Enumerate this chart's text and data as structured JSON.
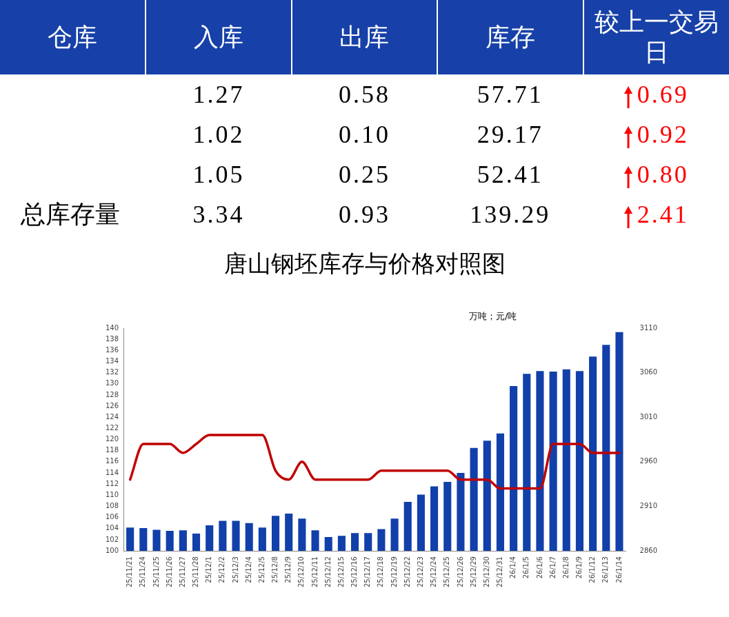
{
  "chart_data": [
    {
      "type": "other",
      "categories": [
        "仓库",
        "入库",
        "出库",
        "库存",
        "较上一交易日"
      ],
      "y_categories": [
        null,
        null,
        null,
        "总库存量"
      ],
      "cell_labels": [
        [
          "1.27",
          "0.58",
          "57.71",
          "0.69"
        ],
        [
          "1.02",
          "0.10",
          "29.17",
          "0.92"
        ],
        [
          "1.05",
          "0.25",
          "52.41",
          "0.80"
        ],
        [
          "3.34",
          "0.93",
          "139.29",
          "2.41"
        ]
      ]
    },
    {
      "type": "bar",
      "title": "唐山钢坯库存与价格对照图",
      "annotations": [
        "万吨；元/吨"
      ],
      "categories": [
        "25/11/21",
        "25/11/24",
        "25/11/25",
        "25/11/26",
        "25/11/27",
        "25/11/28",
        "25/12/1",
        "25/12/2",
        "25/12/3",
        "25/12/4",
        "25/12/5",
        "25/12/8",
        "25/12/9",
        "25/12/10",
        "25/12/11",
        "25/12/12",
        "25/12/15",
        "25/12/16",
        "25/12/17",
        "25/12/18",
        "25/12/19",
        "25/12/22",
        "25/12/23",
        "25/12/24",
        "25/12/25",
        "25/12/26",
        "25/12/29",
        "25/12/30",
        "25/12/31",
        "26/1/4",
        "26/1/5",
        "26/1/6",
        "26/1/7",
        "26/1/8",
        "26/1/9",
        "26/1/12",
        "26/1/13",
        "26/1/14"
      ],
      "series": [
        {
          "type": "bar",
          "color": "#1240aa",
          "values": [
            104.2,
            104.1,
            103.8,
            103.6,
            103.7,
            103.1,
            104.6,
            105.4,
            105.4,
            105.0,
            104.2,
            106.3,
            106.7,
            105.8,
            103.7,
            102.5,
            102.7,
            103.2,
            103.2,
            103.9,
            105.8,
            108.8,
            110.1,
            111.6,
            112.4,
            114.0,
            118.5,
            119.8,
            121.1,
            129.6,
            131.8,
            132.3,
            132.2,
            132.6,
            132.3,
            134.9,
            137.0,
            139.3
          ]
        },
        {
          "type": "line",
          "axis": "y2",
          "color": "#c00000",
          "values": [
            2940,
            2980,
            2980,
            2980,
            2970,
            2980,
            2990,
            2990,
            2990,
            2990,
            2990,
            2950,
            2940,
            2960,
            2940,
            2940,
            2940,
            2940,
            2940,
            2950,
            2950,
            2950,
            2950,
            2950,
            2950,
            2940,
            2940,
            2940,
            2930,
            2930,
            2930,
            2930,
            2980,
            2980,
            2980,
            2970,
            2970,
            2970
          ]
        }
      ],
      "ylim": [
        100,
        140
      ],
      "yticks": [
        100,
        102,
        104,
        106,
        108,
        110,
        112,
        114,
        116,
        118,
        120,
        122,
        124,
        126,
        128,
        130,
        132,
        134,
        136,
        138,
        140
      ],
      "y2lim": [
        2860,
        3110
      ],
      "y2ticks": [
        2860,
        2910,
        2960,
        3010,
        3060,
        3110
      ],
      "grid": false,
      "legend": false,
      "marker": "none"
    }
  ]
}
